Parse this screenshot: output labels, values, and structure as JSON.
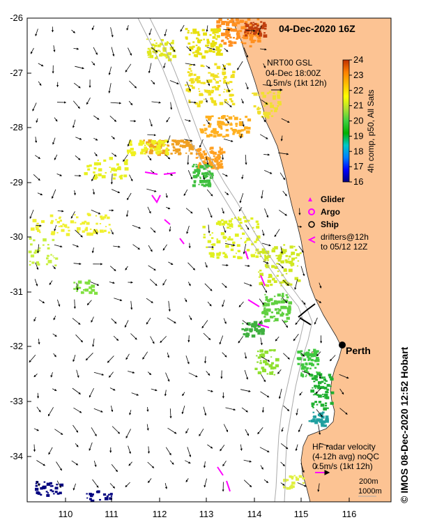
{
  "map": {
    "title": "04-Dec-2020 16Z",
    "credit": "IMOS 08-Dec-2020 12:52 Hobart",
    "copyright_symbol": "©",
    "lat_ticks": [
      "-26",
      "-27",
      "-28",
      "-29",
      "-30",
      "-31",
      "-32",
      "-33",
      "-34"
    ],
    "lon_ticks": [
      "110",
      "111",
      "112",
      "113",
      "114",
      "115",
      "116"
    ],
    "lat_range": [
      -34.8,
      -26
    ],
    "lon_range": [
      109.3,
      117
    ],
    "colors": {
      "land": "#fcc393",
      "ocean": "#ffffff",
      "isobath": "#aaaaaa",
      "current_vector": "#000000"
    }
  },
  "colorbar": {
    "label": "4h comp, p50, All Sats",
    "ticks": [
      "24",
      "23",
      "22",
      "21",
      "20",
      "19",
      "18",
      "17",
      "16"
    ],
    "range": [
      16,
      24
    ],
    "stops": [
      "#00007f",
      "#0000ff",
      "#0080ff",
      "#00c8c8",
      "#00b000",
      "#40d040",
      "#b0e030",
      "#ffff00",
      "#ffc000",
      "#ff8000",
      "#c03000"
    ]
  },
  "gsl_legend": {
    "line1": "NRT00 GSL",
    "line2": "04-Dec 18:00Z",
    "line3": "0.5m/s (1kt 12h)"
  },
  "platform_legend": {
    "glider": "Glider",
    "argo": "Argo",
    "ship": "Ship",
    "drifters_line1": "drifters@12h",
    "drifters_line2": "to 05/12 12Z",
    "colors": {
      "glider": "#ff00ff",
      "argo": "#ff00ff",
      "ship": "#000000",
      "drifter": "#ff00ff"
    }
  },
  "places": {
    "perth": "Perth"
  },
  "hf_legend": {
    "line1": "HF radar velocity",
    "line2": "(4-12h avg) noQC",
    "line3": "0.5m/s (1kt 12h)"
  },
  "isobath_legend": {
    "line1": "200m",
    "line2": "1000m"
  }
}
